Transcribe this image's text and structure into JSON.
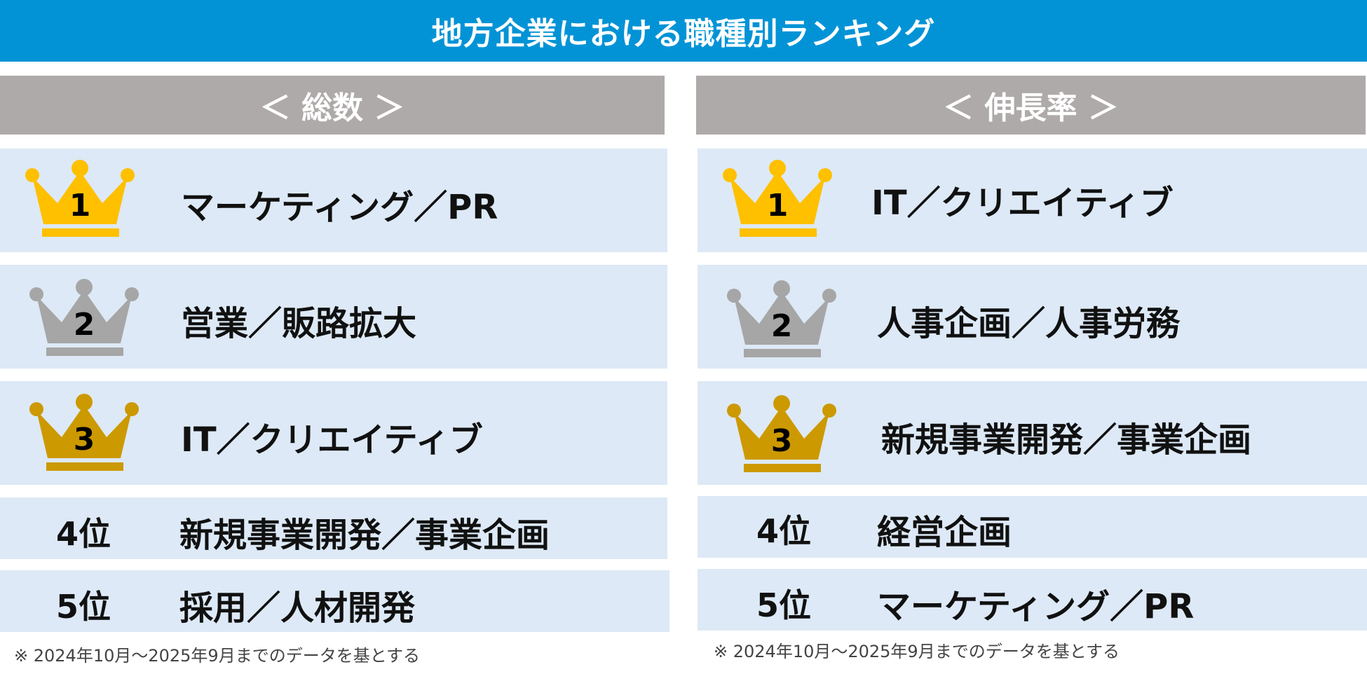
{
  "title": "地方企業における職種別ランキング",
  "colors": {
    "banner": "#0293d6",
    "header": "#aeaaa9",
    "row": "#dde9f6",
    "gold": "#ffc000",
    "silver": "#a6a6a6",
    "bronze": "#cc9900"
  },
  "left": {
    "header": "＜ 総数 ＞",
    "rows": [
      {
        "rank": "1",
        "label": "マーケティング／PR",
        "icon": "gold-crown-icon"
      },
      {
        "rank": "2",
        "label": "営業／販路拡大",
        "icon": "silver-crown-icon"
      },
      {
        "rank": "3",
        "label": "IT／クリエイティブ",
        "icon": "bronze-crown-icon"
      },
      {
        "rank": "4位",
        "label": "新規事業開発／事業企画"
      },
      {
        "rank": "5位",
        "label": "採用／人材開発"
      }
    ],
    "footnote": "※ 2024年10月～2025年9月までのデータを基とする"
  },
  "right": {
    "header": "＜ 伸長率 ＞",
    "rows": [
      {
        "rank": "1",
        "label": "IT／クリエイティブ",
        "icon": "gold-crown-icon"
      },
      {
        "rank": "2",
        "label": "人事企画／人事労務",
        "icon": "silver-crown-icon"
      },
      {
        "rank": "3",
        "label": "新規事業開発／事業企画",
        "icon": "bronze-crown-icon"
      },
      {
        "rank": "4位",
        "label": "経営企画"
      },
      {
        "rank": "5位",
        "label": "マーケティング／PR"
      }
    ],
    "footnote": "※ 2024年10月～2025年9月までのデータを基とする"
  }
}
